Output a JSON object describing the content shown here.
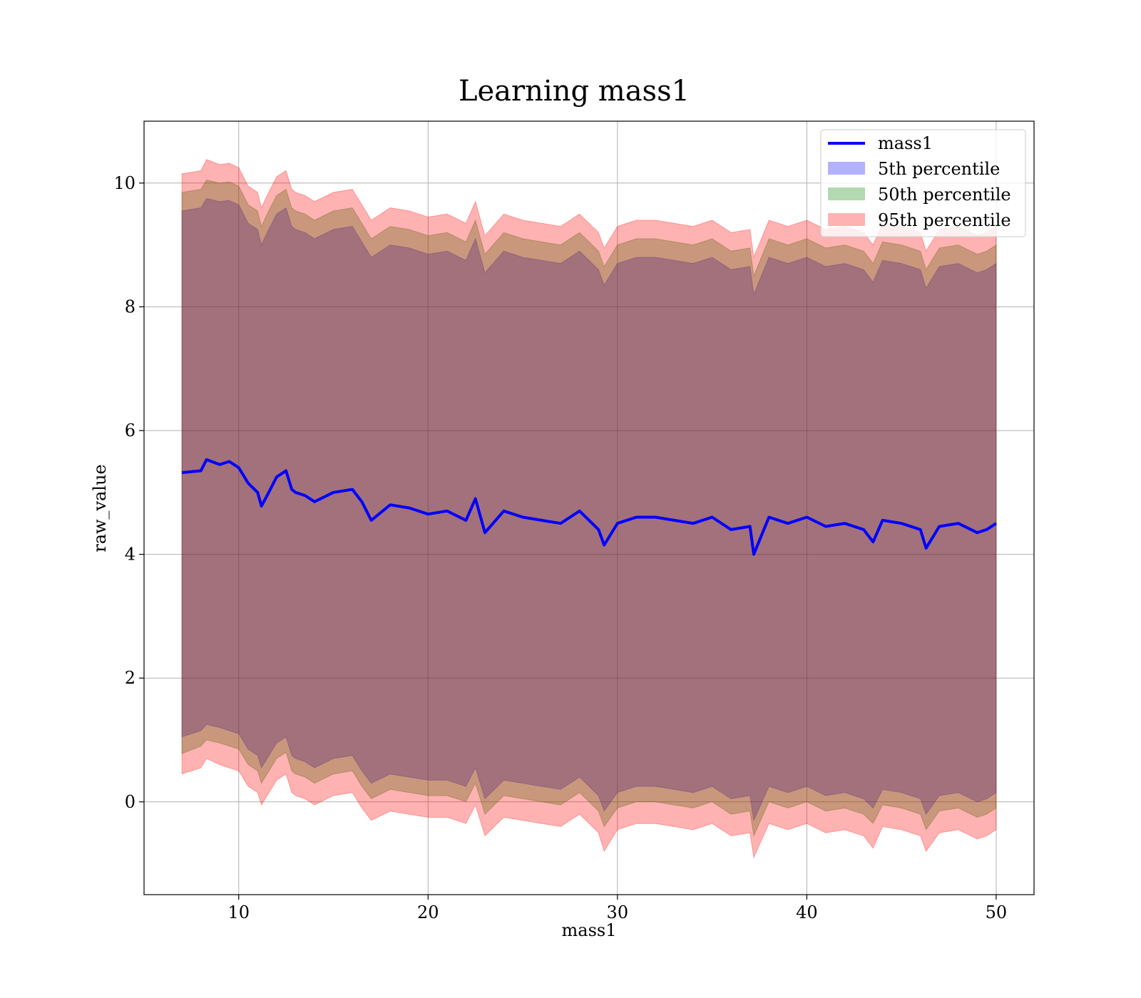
{
  "chart_data": {
    "type": "area",
    "title": "Learning mass1",
    "xlabel": "mass1",
    "ylabel": "raw_value",
    "xlim": [
      5,
      52
    ],
    "ylim": [
      -1.5,
      11
    ],
    "x_ticks": [
      10,
      20,
      30,
      40,
      50
    ],
    "y_ticks": [
      0,
      2,
      4,
      6,
      8,
      10
    ],
    "grid": true,
    "legend_position": "top-right",
    "legend": [
      {
        "label": "mass1",
        "kind": "line",
        "color": "#0000ff"
      },
      {
        "label": "5th percentile",
        "kind": "patch",
        "color": "#0000ff"
      },
      {
        "label": "50th percentile",
        "kind": "patch",
        "color": "#008000"
      },
      {
        "label": "95th percentile",
        "kind": "patch",
        "color": "#ff0000"
      }
    ],
    "x": [
      7.0,
      8.0,
      8.3,
      9.0,
      9.5,
      10.0,
      10.5,
      11.0,
      11.2,
      11.5,
      12.0,
      12.5,
      12.8,
      13.0,
      13.5,
      14.0,
      15.0,
      16.0,
      16.5,
      17.0,
      18.0,
      19.0,
      20.0,
      21.0,
      22.0,
      22.5,
      23.0,
      24.0,
      25.0,
      26.0,
      27.0,
      28.0,
      29.0,
      29.3,
      30.0,
      31.0,
      32.0,
      33.0,
      34.0,
      35.0,
      36.0,
      37.0,
      37.2,
      38.0,
      39.0,
      40.0,
      41.0,
      42.0,
      43.0,
      43.5,
      44.0,
      45.0,
      46.0,
      46.3,
      47.0,
      48.0,
      49.0,
      49.5,
      50.0
    ],
    "series": [
      {
        "name": "mass1",
        "values": [
          5.32,
          5.35,
          5.53,
          5.45,
          5.5,
          5.4,
          5.15,
          5.0,
          4.78,
          4.95,
          5.25,
          5.35,
          5.05,
          5.0,
          4.95,
          4.85,
          5.0,
          5.05,
          4.85,
          4.55,
          4.8,
          4.75,
          4.65,
          4.7,
          4.55,
          4.9,
          4.35,
          4.7,
          4.6,
          4.55,
          4.5,
          4.7,
          4.4,
          4.15,
          4.5,
          4.6,
          4.6,
          4.55,
          4.5,
          4.6,
          4.4,
          4.45,
          4.0,
          4.6,
          4.5,
          4.6,
          4.45,
          4.5,
          4.4,
          4.2,
          4.55,
          4.5,
          4.4,
          4.1,
          4.45,
          4.5,
          4.35,
          4.4,
          4.5
        ]
      },
      {
        "name": "5th percentile",
        "lower": [
          1.05,
          1.15,
          1.25,
          1.2,
          1.15,
          1.1,
          0.85,
          0.75,
          0.55,
          0.7,
          0.95,
          1.05,
          0.75,
          0.7,
          0.65,
          0.55,
          0.7,
          0.75,
          0.5,
          0.3,
          0.45,
          0.4,
          0.35,
          0.35,
          0.25,
          0.55,
          0.05,
          0.35,
          0.3,
          0.25,
          0.2,
          0.4,
          0.1,
          -0.15,
          0.15,
          0.25,
          0.25,
          0.2,
          0.15,
          0.25,
          0.05,
          0.1,
          -0.3,
          0.25,
          0.15,
          0.25,
          0.1,
          0.15,
          0.05,
          -0.1,
          0.2,
          0.15,
          0.05,
          -0.2,
          0.1,
          0.15,
          0.0,
          0.05,
          0.15
        ],
        "upper": [
          9.55,
          9.6,
          9.75,
          9.7,
          9.72,
          9.65,
          9.35,
          9.25,
          9.0,
          9.2,
          9.5,
          9.6,
          9.3,
          9.25,
          9.2,
          9.1,
          9.25,
          9.3,
          9.05,
          8.8,
          9.0,
          8.95,
          8.85,
          8.9,
          8.75,
          9.1,
          8.55,
          8.9,
          8.8,
          8.75,
          8.7,
          8.9,
          8.6,
          8.35,
          8.7,
          8.8,
          8.8,
          8.75,
          8.7,
          8.8,
          8.6,
          8.65,
          8.2,
          8.8,
          8.7,
          8.8,
          8.65,
          8.7,
          8.6,
          8.4,
          8.75,
          8.7,
          8.6,
          8.3,
          8.65,
          8.7,
          8.55,
          8.6,
          8.7
        ]
      },
      {
        "name": "50th percentile",
        "lower": [
          0.78,
          0.9,
          1.0,
          0.95,
          0.9,
          0.85,
          0.6,
          0.5,
          0.3,
          0.45,
          0.7,
          0.8,
          0.5,
          0.45,
          0.4,
          0.3,
          0.45,
          0.5,
          0.25,
          0.05,
          0.2,
          0.15,
          0.1,
          0.1,
          0.0,
          0.3,
          -0.2,
          0.1,
          0.05,
          0.0,
          -0.05,
          0.15,
          -0.15,
          -0.4,
          -0.1,
          0.0,
          0.0,
          -0.05,
          -0.1,
          0.0,
          -0.2,
          -0.15,
          -0.55,
          0.0,
          -0.1,
          0.0,
          -0.15,
          -0.1,
          -0.2,
          -0.35,
          -0.05,
          -0.1,
          -0.2,
          -0.45,
          -0.15,
          -0.1,
          -0.25,
          -0.2,
          -0.1
        ],
        "upper": [
          9.85,
          9.9,
          10.05,
          10.0,
          10.02,
          9.95,
          9.65,
          9.55,
          9.3,
          9.5,
          9.8,
          9.9,
          9.6,
          9.55,
          9.5,
          9.4,
          9.55,
          9.6,
          9.35,
          9.1,
          9.3,
          9.25,
          9.15,
          9.2,
          9.05,
          9.4,
          8.85,
          9.2,
          9.1,
          9.05,
          9.0,
          9.2,
          8.9,
          8.65,
          9.0,
          9.1,
          9.1,
          9.05,
          9.0,
          9.1,
          8.9,
          8.95,
          8.5,
          9.1,
          9.0,
          9.1,
          8.95,
          9.0,
          8.9,
          8.7,
          9.05,
          9.0,
          8.9,
          8.6,
          8.95,
          9.0,
          8.85,
          8.9,
          9.0
        ]
      },
      {
        "name": "95th percentile",
        "lower": [
          0.45,
          0.55,
          0.7,
          0.6,
          0.55,
          0.5,
          0.25,
          0.15,
          -0.05,
          0.1,
          0.35,
          0.45,
          0.15,
          0.1,
          0.05,
          -0.05,
          0.1,
          0.15,
          -0.1,
          -0.3,
          -0.15,
          -0.2,
          -0.25,
          -0.25,
          -0.35,
          -0.05,
          -0.55,
          -0.25,
          -0.3,
          -0.35,
          -0.4,
          -0.2,
          -0.5,
          -0.8,
          -0.45,
          -0.35,
          -0.35,
          -0.4,
          -0.45,
          -0.35,
          -0.55,
          -0.5,
          -0.9,
          -0.35,
          -0.45,
          -0.35,
          -0.5,
          -0.45,
          -0.55,
          -0.75,
          -0.4,
          -0.45,
          -0.55,
          -0.8,
          -0.5,
          -0.45,
          -0.6,
          -0.55,
          -0.45
        ],
        "upper": [
          10.15,
          10.2,
          10.38,
          10.3,
          10.32,
          10.25,
          9.95,
          9.85,
          9.6,
          9.8,
          10.1,
          10.2,
          9.9,
          9.85,
          9.8,
          9.7,
          9.85,
          9.9,
          9.65,
          9.4,
          9.6,
          9.55,
          9.45,
          9.5,
          9.35,
          9.7,
          9.15,
          9.5,
          9.4,
          9.35,
          9.3,
          9.5,
          9.2,
          8.95,
          9.3,
          9.4,
          9.4,
          9.35,
          9.3,
          9.4,
          9.2,
          9.25,
          8.8,
          9.4,
          9.3,
          9.4,
          9.25,
          9.3,
          9.2,
          9.0,
          9.35,
          9.3,
          9.2,
          8.9,
          9.25,
          9.3,
          9.15,
          9.2,
          9.3
        ]
      }
    ],
    "colors": {
      "line": "#0000ff",
      "p5": "#0000ff",
      "p50": "#008000",
      "p95": "#ff0000"
    }
  }
}
